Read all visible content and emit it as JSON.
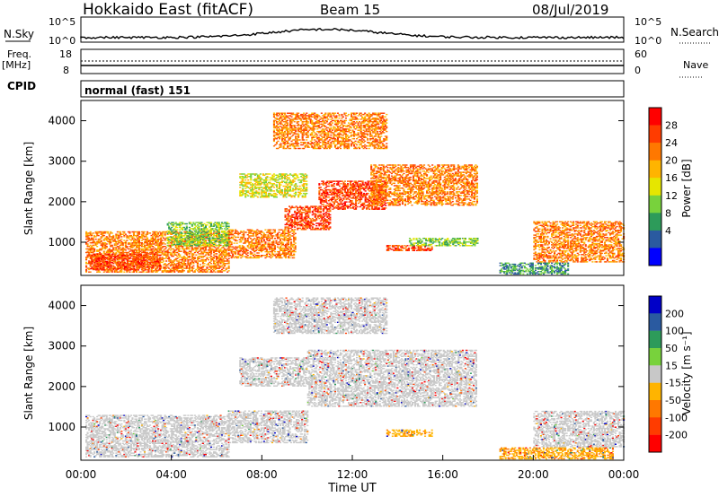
{
  "header": {
    "title": "Hokkaido East (fitACF)",
    "beam": "Beam 15",
    "date": "08/Jul/2019"
  },
  "top_panels": {
    "nsky_label": "N.Sky",
    "nsearch_label": "N.Search",
    "nsky_ticks": [
      "10^5",
      "10^0"
    ],
    "nsky_right_ticks": [
      "10^5",
      "10^0"
    ],
    "freq_label": "Freq.",
    "freq_unit": "[MHz]",
    "freq_ticks": [
      "18",
      "8"
    ],
    "nave_label": "Nave",
    "nave_ticks": [
      "60",
      "0"
    ],
    "cpid_label": "CPID",
    "cpid_value": "normal (fast) 151"
  },
  "chart_data": [
    {
      "type": "heatmap",
      "name": "power",
      "ylabel": "Slant Range [km]",
      "ylim": [
        180,
        4500
      ],
      "yticks": [
        "1000",
        "2000",
        "3000",
        "4000"
      ],
      "xlabel": "",
      "colorbar": {
        "label": "Power [dB]",
        "ticks": [
          "28",
          "24",
          "20",
          "16",
          "12",
          "8",
          "4"
        ],
        "colors": [
          "#ff0000",
          "#ff3c00",
          "#ff7800",
          "#ffb400",
          "#e6e600",
          "#78d23c",
          "#2d9b5a",
          "#2a5aa0",
          "#0000ff"
        ]
      },
      "regions": [
        {
          "t0": 0.2,
          "t1": 6.5,
          "r0": 250,
          "r1": 1250,
          "level": 24
        },
        {
          "t0": 0.4,
          "t1": 3.5,
          "r0": 300,
          "r1": 700,
          "level": 28
        },
        {
          "t0": 3.8,
          "t1": 6.5,
          "r0": 900,
          "r1": 1500,
          "level": 12
        },
        {
          "t0": 6.5,
          "t1": 9.5,
          "r0": 600,
          "r1": 1300,
          "level": 24
        },
        {
          "t0": 9.0,
          "t1": 11.0,
          "r0": 1300,
          "r1": 1900,
          "level": 28
        },
        {
          "t0": 10.5,
          "t1": 13.5,
          "r0": 1800,
          "r1": 2500,
          "level": 28
        },
        {
          "t0": 7.0,
          "t1": 10.0,
          "r0": 2100,
          "r1": 2700,
          "level": 16
        },
        {
          "t0": 8.5,
          "t1": 13.5,
          "r0": 3300,
          "r1": 4200,
          "level": 24
        },
        {
          "t0": 12.8,
          "t1": 17.5,
          "r0": 1900,
          "r1": 2900,
          "level": 24
        },
        {
          "t0": 13.5,
          "t1": 15.5,
          "r0": 780,
          "r1": 920,
          "level": 28
        },
        {
          "t0": 14.5,
          "t1": 17.5,
          "r0": 900,
          "r1": 1100,
          "level": 12
        },
        {
          "t0": 18.5,
          "t1": 21.5,
          "r0": 200,
          "r1": 500,
          "level": 8
        },
        {
          "t0": 20.0,
          "t1": 24.0,
          "r0": 500,
          "r1": 1500,
          "level": 24
        }
      ]
    },
    {
      "type": "heatmap",
      "name": "velocity",
      "ylabel": "Slant Range [km]",
      "ylim": [
        180,
        4500
      ],
      "yticks": [
        "1000",
        "2000",
        "3000",
        "4000"
      ],
      "xlabel": "Time UT",
      "xticks": [
        "00:00",
        "04:00",
        "08:00",
        "12:00",
        "16:00",
        "20:00",
        "00:00"
      ],
      "colorbar": {
        "label": "Velocity [m s⁻¹]",
        "ticks": [
          "200",
          "100",
          "50",
          "15",
          "-15",
          "-50",
          "-100",
          "-200"
        ],
        "colors": [
          "#0000c8",
          "#2a5aa0",
          "#2d9b5a",
          "#78d23c",
          "#c8c8c8",
          "#ffb400",
          "#ff7800",
          "#ff3c00",
          "#ff0000"
        ]
      },
      "regions": [
        {
          "t0": 0.2,
          "t1": 6.5,
          "r0": 250,
          "r1": 1300,
          "level": 0
        },
        {
          "t0": 6.5,
          "t1": 10.0,
          "r0": 600,
          "r1": 1400,
          "level": 0
        },
        {
          "t0": 7.0,
          "t1": 10.0,
          "r0": 2000,
          "r1": 2700,
          "level": 0
        },
        {
          "t0": 8.5,
          "t1": 13.5,
          "r0": 3300,
          "r1": 4200,
          "level": 0
        },
        {
          "t0": 10.0,
          "t1": 17.5,
          "r0": 1500,
          "r1": 2900,
          "level": 0
        },
        {
          "t0": 13.5,
          "t1": 15.5,
          "r0": 760,
          "r1": 940,
          "level": -40
        },
        {
          "t0": 18.5,
          "t1": 23.5,
          "r0": 200,
          "r1": 500,
          "level": -40
        },
        {
          "t0": 20.0,
          "t1": 24.0,
          "r0": 500,
          "r1": 1400,
          "level": 0
        }
      ]
    }
  ]
}
